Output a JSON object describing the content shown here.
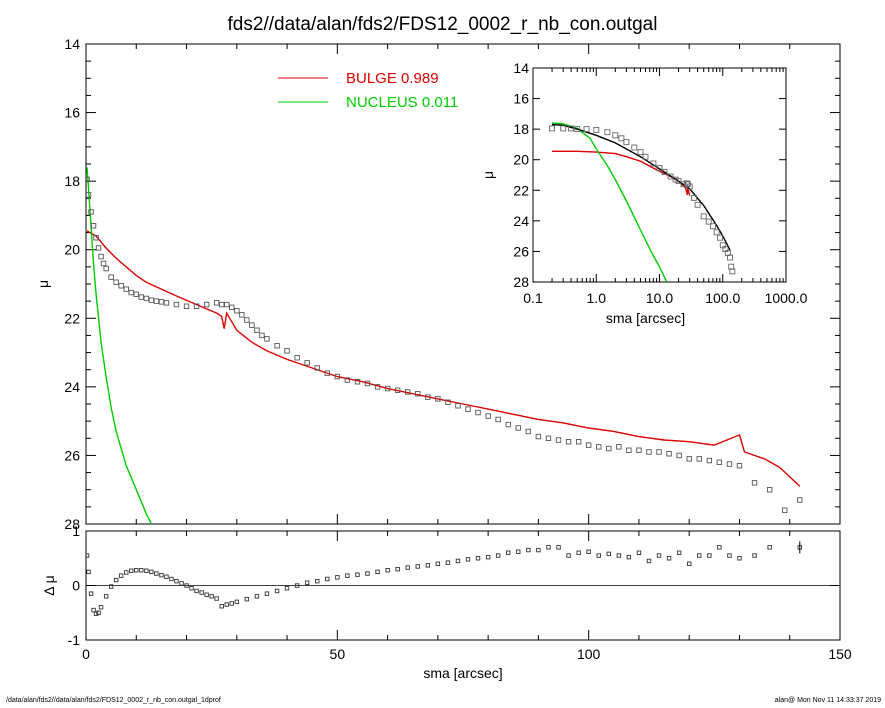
{
  "title": "fds2//data/alan/fds2/FDS12_0002_r_nb_con.outgal",
  "footer": {
    "left": "/data/alan/fds2//data/alan/fds2/FDS12_0002_r_nb_con.outgal_1dprof",
    "right": "alan@  Mon Nov 11 14:33:37 2019"
  },
  "colors": {
    "bulge": "#dd0000",
    "nucleus": "#00cc00",
    "data": "#555555",
    "axis": "#000000"
  },
  "chart_data": [
    {
      "id": "main",
      "type": "scatter",
      "xlabel": "",
      "ylabel": "μ",
      "xlim": [
        0,
        150
      ],
      "ylim": [
        28,
        14
      ],
      "yticks": [
        14,
        16,
        18,
        20,
        22,
        24,
        26,
        28
      ],
      "legend": [
        {
          "name": "BULGE",
          "value": "0.989",
          "color": "#dd0000"
        },
        {
          "name": "NUCLEUS",
          "value": "0.011",
          "color": "#00cc00"
        }
      ],
      "legend_placement": "top-center",
      "series": [
        {
          "name": "BULGE",
          "style": "line",
          "color": "#dd0000",
          "x": [
            0.2,
            2,
            4,
            6,
            8,
            10,
            12,
            15,
            18,
            22,
            26,
            27,
            27.5,
            28,
            30,
            33,
            36,
            40,
            45,
            50,
            55,
            60,
            65,
            70,
            75,
            80,
            85,
            90,
            95,
            100,
            105,
            110,
            115,
            120,
            125,
            130,
            131,
            135,
            138,
            142
          ],
          "y": [
            19.45,
            19.6,
            19.95,
            20.25,
            20.5,
            20.75,
            20.95,
            21.15,
            21.35,
            21.6,
            21.85,
            21.95,
            22.3,
            21.85,
            22.35,
            22.7,
            22.95,
            23.2,
            23.45,
            23.7,
            23.85,
            24.05,
            24.2,
            24.35,
            24.5,
            24.65,
            24.8,
            24.95,
            25.05,
            25.2,
            25.3,
            25.45,
            25.55,
            25.6,
            25.7,
            25.4,
            25.9,
            26.1,
            26.35,
            26.9
          ]
        },
        {
          "name": "NUCLEUS",
          "style": "line",
          "color": "#00cc00",
          "x": [
            0.2,
            0.5,
            1,
            1.5,
            2,
            3,
            4,
            5,
            6,
            8,
            10,
            12,
            13
          ],
          "y": [
            17.6,
            18.2,
            19.3,
            20.4,
            21.3,
            22.7,
            23.7,
            24.6,
            25.3,
            26.3,
            27.0,
            27.7,
            28.0
          ]
        },
        {
          "name": "data",
          "style": "markers",
          "color": "#555555",
          "x": [
            0.2,
            0.5,
            1,
            1.5,
            2,
            2.5,
            3,
            3.5,
            4,
            5,
            6,
            7,
            8,
            9,
            10,
            11,
            12,
            13,
            14,
            15,
            16,
            18,
            20,
            22,
            24,
            26,
            27,
            28,
            29,
            30,
            31,
            32,
            33,
            34,
            35,
            36,
            38,
            40,
            42,
            44,
            46,
            48,
            50,
            52,
            54,
            56,
            58,
            60,
            62,
            64,
            66,
            68,
            70,
            72,
            74,
            76,
            78,
            80,
            82,
            84,
            86,
            88,
            90,
            92,
            94,
            96,
            98,
            100,
            102,
            104,
            106,
            108,
            110,
            112,
            114,
            116,
            118,
            120,
            122,
            124,
            126,
            128,
            130,
            133,
            136,
            139,
            142
          ],
          "y": [
            17.95,
            18.4,
            18.9,
            19.3,
            19.65,
            19.95,
            20.2,
            20.4,
            20.55,
            20.8,
            20.95,
            21.05,
            21.15,
            21.25,
            21.3,
            21.38,
            21.42,
            21.47,
            21.5,
            21.52,
            21.55,
            21.6,
            21.65,
            21.65,
            21.6,
            21.55,
            21.6,
            21.6,
            21.68,
            21.78,
            21.9,
            22.05,
            22.2,
            22.35,
            22.5,
            22.6,
            22.8,
            22.95,
            23.15,
            23.3,
            23.45,
            23.6,
            23.7,
            23.8,
            23.85,
            23.9,
            24.0,
            24.05,
            24.1,
            24.15,
            24.2,
            24.3,
            24.35,
            24.45,
            24.55,
            24.65,
            24.75,
            24.85,
            24.95,
            25.1,
            25.2,
            25.3,
            25.45,
            25.5,
            25.55,
            25.6,
            25.6,
            25.7,
            25.75,
            25.8,
            25.75,
            25.85,
            25.85,
            25.9,
            25.9,
            25.95,
            26.0,
            26.1,
            26.1,
            26.15,
            26.2,
            26.25,
            26.3,
            26.8,
            27.0,
            27.6,
            27.3
          ]
        }
      ]
    },
    {
      "id": "residuals",
      "type": "scatter",
      "xlabel": "sma [arcsec]",
      "ylabel": "Δ μ",
      "xlim": [
        0,
        150
      ],
      "ylim": [
        -1,
        1
      ],
      "xticks": [
        0,
        50,
        100,
        150
      ],
      "yticks": [
        -1,
        0,
        1
      ],
      "series": [
        {
          "name": "residual",
          "style": "markers",
          "color": "#333333",
          "x": [
            0.2,
            0.5,
            1,
            1.5,
            2,
            2.5,
            3,
            4,
            5,
            6,
            7,
            8,
            9,
            10,
            11,
            12,
            13,
            14,
            15,
            16,
            17,
            18,
            19,
            20,
            21,
            22,
            23,
            24,
            25,
            26,
            27,
            28,
            29,
            30,
            32,
            34,
            36,
            38,
            40,
            42,
            44,
            46,
            48,
            50,
            52,
            54,
            56,
            58,
            60,
            62,
            64,
            66,
            68,
            70,
            72,
            74,
            76,
            78,
            80,
            82,
            84,
            86,
            88,
            90,
            92,
            94,
            96,
            98,
            100,
            102,
            104,
            106,
            108,
            110,
            112,
            114,
            116,
            118,
            120,
            122,
            124,
            126,
            128,
            130,
            133,
            136,
            142
          ],
          "y": [
            0.55,
            0.25,
            -0.15,
            -0.45,
            -0.52,
            -0.5,
            -0.4,
            -0.2,
            -0.02,
            0.1,
            0.18,
            0.24,
            0.27,
            0.28,
            0.28,
            0.27,
            0.25,
            0.22,
            0.19,
            0.16,
            0.12,
            0.08,
            0.04,
            0.0,
            -0.05,
            -0.1,
            -0.13,
            -0.17,
            -0.2,
            -0.24,
            -0.38,
            -0.35,
            -0.33,
            -0.3,
            -0.25,
            -0.2,
            -0.15,
            -0.1,
            -0.05,
            0.0,
            0.05,
            0.08,
            0.12,
            0.15,
            0.18,
            0.2,
            0.22,
            0.25,
            0.28,
            0.3,
            0.33,
            0.35,
            0.37,
            0.4,
            0.42,
            0.45,
            0.48,
            0.5,
            0.52,
            0.55,
            0.6,
            0.62,
            0.65,
            0.65,
            0.7,
            0.7,
            0.55,
            0.6,
            0.62,
            0.55,
            0.58,
            0.55,
            0.52,
            0.6,
            0.45,
            0.55,
            0.5,
            0.6,
            0.4,
            0.55,
            0.55,
            0.7,
            0.55,
            0.5,
            0.55,
            0.7,
            0.7
          ],
          "errorbar_at_last": true
        }
      ]
    },
    {
      "id": "inset",
      "type": "scatter",
      "xlabel": "sma [arcsec]",
      "ylabel": "μ",
      "xscale": "log",
      "xlim": [
        0.1,
        1000
      ],
      "ylim": [
        28,
        14
      ],
      "xticks": [
        "0.1",
        "1.0",
        "10.0",
        "100.0",
        "1000.0"
      ],
      "yticks": [
        14,
        16,
        18,
        20,
        22,
        24,
        26,
        28
      ],
      "series": [
        {
          "name": "BULGE",
          "style": "line",
          "color": "#dd0000",
          "x": [
            0.2,
            0.5,
            1,
            2,
            3,
            5,
            8,
            10,
            15,
            20,
            26,
            27.5,
            28,
            30
          ],
          "y": [
            19.45,
            19.45,
            19.5,
            19.6,
            19.8,
            20.1,
            20.55,
            20.75,
            21.1,
            21.4,
            21.85,
            22.3,
            21.85,
            22.35
          ]
        },
        {
          "name": "NUCLEUS",
          "style": "line",
          "color": "#00cc00",
          "x": [
            0.2,
            0.3,
            0.5,
            0.8,
            1,
            1.5,
            2,
            3,
            5,
            8,
            10,
            13
          ],
          "y": [
            17.6,
            17.65,
            17.95,
            18.6,
            19.3,
            20.4,
            21.3,
            22.7,
            24.6,
            26.3,
            27.0,
            28.0
          ]
        },
        {
          "name": "model",
          "style": "line",
          "color": "#000000",
          "x": [
            0.2,
            0.3,
            0.5,
            1,
            2,
            3,
            5,
            10,
            20,
            30,
            50,
            80,
            100,
            130
          ],
          "y": [
            17.7,
            17.75,
            18.0,
            18.4,
            18.9,
            19.3,
            19.8,
            20.6,
            21.4,
            21.9,
            23.0,
            24.3,
            25.0,
            25.9
          ]
        },
        {
          "name": "data",
          "style": "markers",
          "color": "#666666",
          "x": [
            0.2,
            0.3,
            0.4,
            0.5,
            0.7,
            1,
            1.5,
            2,
            2.5,
            3,
            4,
            5,
            6,
            8,
            10,
            12,
            15,
            18,
            20,
            24,
            27,
            28,
            30,
            35,
            40,
            50,
            60,
            70,
            80,
            90,
            100,
            110,
            120,
            130,
            136,
            142
          ],
          "y": [
            17.95,
            17.95,
            17.95,
            18.0,
            18.0,
            18.05,
            18.2,
            18.4,
            18.6,
            18.85,
            19.2,
            19.5,
            19.8,
            20.25,
            20.55,
            20.8,
            21.1,
            21.3,
            21.4,
            21.6,
            21.55,
            21.6,
            21.75,
            22.5,
            22.95,
            23.7,
            24.05,
            24.35,
            24.75,
            25.1,
            25.6,
            25.85,
            26.1,
            26.4,
            27.0,
            27.3
          ]
        }
      ]
    }
  ]
}
